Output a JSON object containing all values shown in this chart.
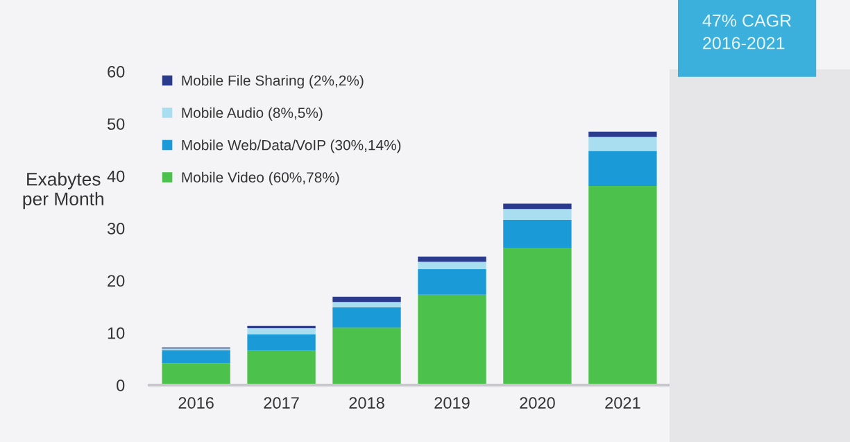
{
  "chart_data": {
    "type": "bar",
    "stacked": true,
    "ylabel": "Exabytes\nper Month",
    "categories": [
      "2016",
      "2017",
      "2018",
      "2019",
      "2020",
      "2021"
    ],
    "series": [
      {
        "name": "Mobile Video (60%,78%)",
        "color": "#4cc24c",
        "values": [
          4.2,
          6.6,
          11.0,
          17.3,
          26.2,
          38.1
        ]
      },
      {
        "name": "Mobile Web/Data/VoIP (30%,14%)",
        "color": "#1a9ad6",
        "values": [
          2.5,
          3.1,
          3.9,
          4.9,
          5.4,
          6.7
        ]
      },
      {
        "name": "Mobile Audio (8%,5%)",
        "color": "#a8def0",
        "values": [
          0.3,
          1.2,
          1.0,
          1.4,
          2.1,
          2.7
        ]
      },
      {
        "name": "Mobile File Sharing (2%,2%)",
        "color": "#2a3a8c",
        "values": [
          0.2,
          0.4,
          1.0,
          1.0,
          1.0,
          1.0
        ]
      }
    ],
    "ylim": [
      0,
      60
    ],
    "yticks": [
      0,
      10,
      20,
      30,
      40,
      50,
      60
    ],
    "grid": false,
    "legend": "top left",
    "annotations": [
      "47% CAGR\n2016-2021"
    ]
  }
}
